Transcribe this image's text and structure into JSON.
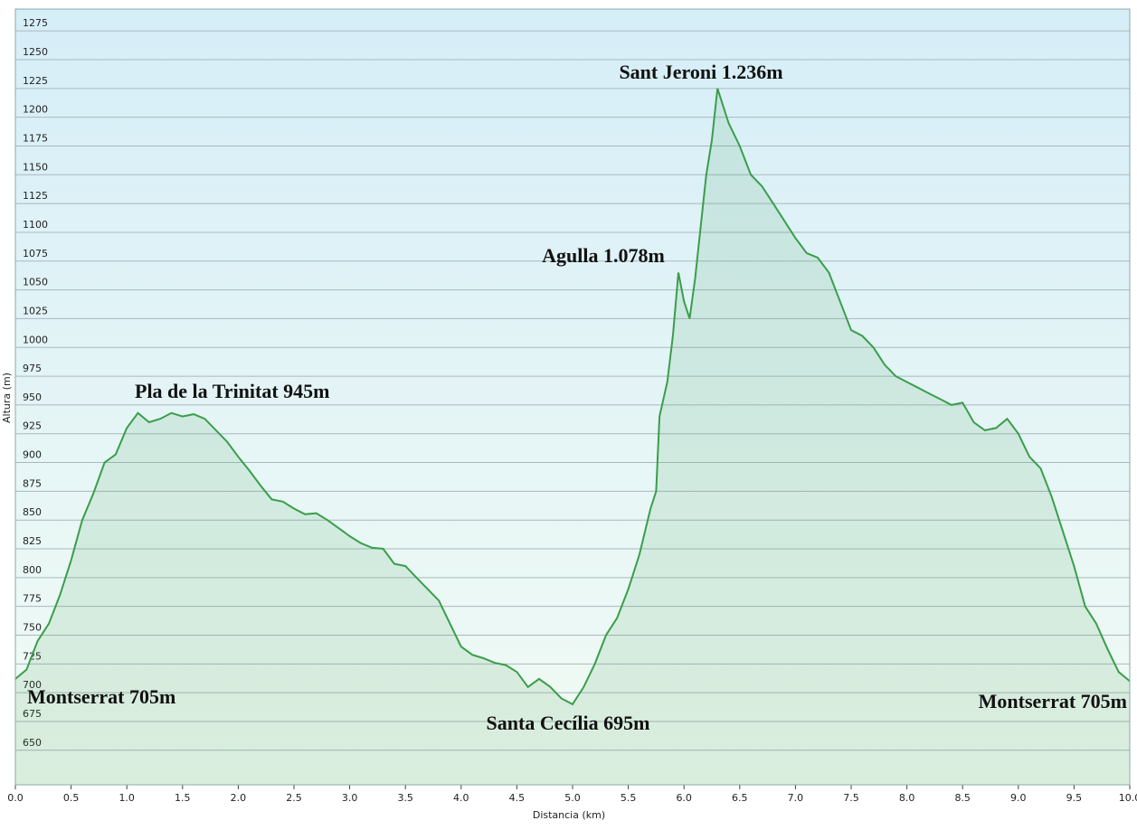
{
  "chart_data": {
    "type": "area",
    "x_label": "Distancia  (km)",
    "y_label": "Altura (m)",
    "annotations": [
      "Sant Jeroni 1.236m",
      "Agulla 1.078m",
      "Pla de la Trinitat 945m",
      "Montserrat 705m",
      "Santa Cecília 695m",
      "Montserrat 705m"
    ],
    "x": [
      0.0,
      0.1,
      0.2,
      0.3,
      0.4,
      0.5,
      0.6,
      0.7,
      0.8,
      0.9,
      1.0,
      1.1,
      1.2,
      1.3,
      1.4,
      1.5,
      1.6,
      1.7,
      1.8,
      1.9,
      2.0,
      2.1,
      2.2,
      2.3,
      2.4,
      2.5,
      2.6,
      2.7,
      2.8,
      2.9,
      3.0,
      3.1,
      3.2,
      3.3,
      3.4,
      3.5,
      3.6,
      3.7,
      3.8,
      3.9,
      4.0,
      4.1,
      4.2,
      4.3,
      4.4,
      4.5,
      4.6,
      4.7,
      4.8,
      4.9,
      5.0,
      5.1,
      5.2,
      5.3,
      5.4,
      5.5,
      5.6,
      5.7,
      5.75,
      5.78,
      5.85,
      5.9,
      5.95,
      6.0,
      6.05,
      6.1,
      6.2,
      6.25,
      6.3,
      6.4,
      6.5,
      6.6,
      6.7,
      6.8,
      6.9,
      7.0,
      7.1,
      7.2,
      7.3,
      7.4,
      7.5,
      7.6,
      7.7,
      7.8,
      7.9,
      8.0,
      8.1,
      8.2,
      8.3,
      8.4,
      8.5,
      8.6,
      8.7,
      8.8,
      8.9,
      9.0,
      9.1,
      9.2,
      9.3,
      9.4,
      9.5,
      9.6,
      9.7,
      9.8,
      9.9,
      10.0
    ],
    "series": [
      {
        "name": "Altura",
        "color": "#3a9e4a",
        "values": [
          712,
          720,
          745,
          760,
          785,
          815,
          850,
          873,
          900,
          907,
          930,
          943,
          935,
          938,
          943,
          940,
          942,
          938,
          928,
          918,
          905,
          893,
          880,
          868,
          866,
          860,
          855,
          856,
          850,
          843,
          836,
          830,
          826,
          825,
          812,
          810,
          800,
          790,
          780,
          760,
          740,
          733,
          730,
          726,
          724,
          718,
          705,
          712,
          705,
          695,
          690,
          705,
          725,
          750,
          765,
          790,
          820,
          860,
          875,
          940,
          970,
          1010,
          1065,
          1040,
          1025,
          1060,
          1150,
          1180,
          1225,
          1195,
          1175,
          1150,
          1140,
          1125,
          1110,
          1095,
          1082,
          1078,
          1065,
          1040,
          1015,
          1010,
          1000,
          985,
          975,
          970,
          965,
          960,
          955,
          950,
          952,
          935,
          928,
          930,
          938,
          925,
          905,
          895,
          870,
          840,
          810,
          775,
          760,
          738,
          718,
          710
        ]
      }
    ],
    "xlim": [
      0,
      10
    ],
    "ylim": [
      620,
      1294
    ],
    "xticks": [
      {
        "value": 0,
        "label": "0.0"
      },
      0.5,
      {
        "value": 1,
        "label": "1.0"
      },
      1.5,
      {
        "value": 2,
        "label": "2.0"
      },
      2.5,
      {
        "value": 3,
        "label": "3.0"
      },
      3.5,
      {
        "value": 4,
        "label": "4.0"
      },
      4.5,
      {
        "value": 5,
        "label": "5.0"
      },
      5.5,
      {
        "value": 6,
        "label": "6.0"
      },
      6.5,
      {
        "value": 7,
        "label": "7.0"
      },
      7.5,
      {
        "value": 8,
        "label": "8.0"
      },
      8.5,
      {
        "value": 9,
        "label": "9.0"
      },
      9.5,
      {
        "value": 10,
        "label": "10.0"
      }
    ],
    "yticks": [
      650,
      675,
      700,
      725,
      750,
      775,
      800,
      825,
      850,
      875,
      900,
      925,
      950,
      975,
      1000,
      1025,
      1050,
      1075,
      1100,
      1125,
      1150,
      1175,
      1200,
      1225,
      1250,
      1275
    ],
    "grid": true
  }
}
